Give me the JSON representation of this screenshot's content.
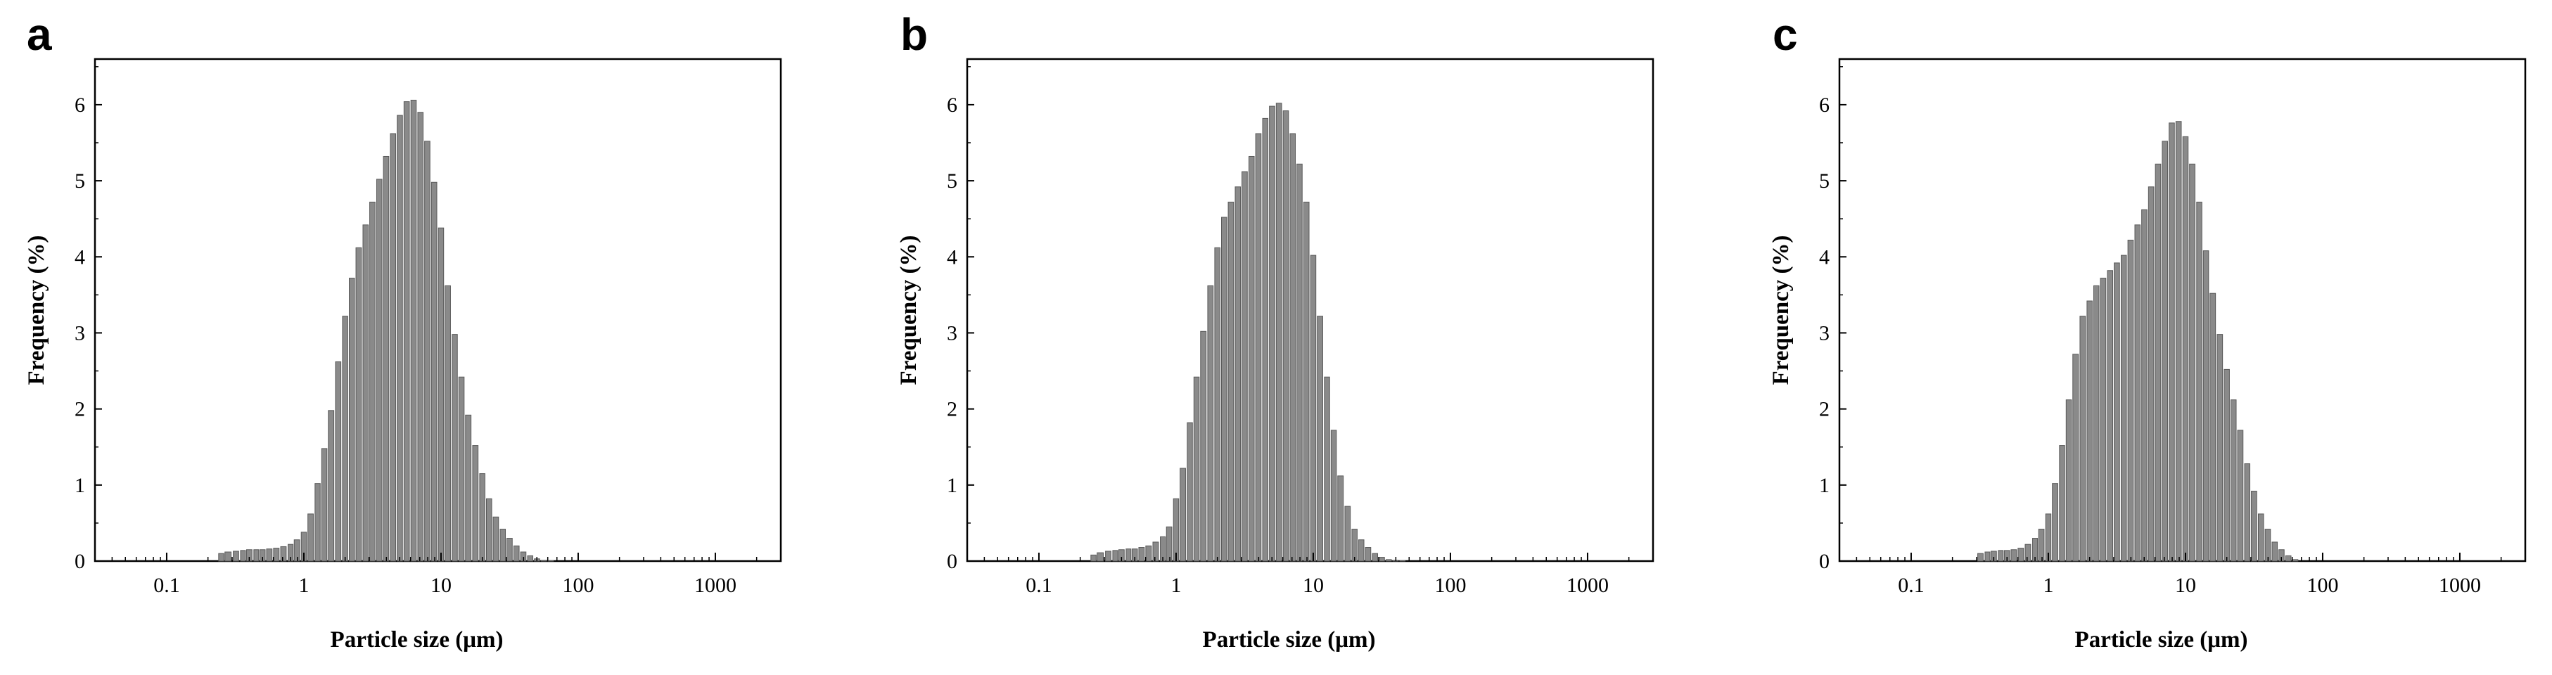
{
  "chart_data": [
    {
      "panel": "a",
      "type": "bar",
      "xlabel": "Particle size (μm)",
      "ylabel": "Frequency (%)",
      "xscale": "log",
      "xlim": [
        0.03,
        3000
      ],
      "ylim": [
        0,
        6.6
      ],
      "xticks": [
        "0.1",
        "1",
        "10",
        "100",
        "1000"
      ],
      "yticks": [
        "0",
        "1",
        "2",
        "3",
        "4",
        "5",
        "6"
      ],
      "bar_color": "#8a8a8a",
      "x": [
        0.25,
        0.28,
        0.32,
        0.36,
        0.4,
        0.45,
        0.5,
        0.56,
        0.63,
        0.71,
        0.8,
        0.89,
        1.0,
        1.12,
        1.26,
        1.41,
        1.58,
        1.78,
        2.0,
        2.24,
        2.51,
        2.82,
        3.16,
        3.55,
        3.98,
        4.47,
        5.01,
        5.62,
        6.31,
        7.08,
        7.94,
        8.91,
        10.0,
        11.2,
        12.6,
        14.1,
        15.8,
        17.8,
        20.0,
        22.4,
        25.1,
        28.2,
        31.6,
        35.5,
        39.8,
        44.7,
        50.1,
        56.2,
        63.1,
        70.8
      ],
      "values": [
        0.1,
        0.12,
        0.13,
        0.14,
        0.15,
        0.15,
        0.15,
        0.16,
        0.17,
        0.19,
        0.22,
        0.28,
        0.38,
        0.62,
        1.02,
        1.48,
        1.98,
        2.62,
        3.22,
        3.72,
        4.12,
        4.42,
        4.72,
        5.02,
        5.32,
        5.62,
        5.86,
        6.04,
        6.06,
        5.9,
        5.52,
        4.98,
        4.38,
        3.62,
        2.98,
        2.42,
        1.92,
        1.52,
        1.15,
        0.82,
        0.58,
        0.42,
        0.3,
        0.2,
        0.12,
        0.07,
        0.03,
        0.01,
        0.005,
        0.0
      ]
    },
    {
      "panel": "b",
      "type": "bar",
      "xlabel": "Particle size (μm)",
      "ylabel": "Frequency (%)",
      "xscale": "log",
      "xlim": [
        0.03,
        3000
      ],
      "ylim": [
        0,
        6.6
      ],
      "xticks": [
        "0.1",
        "1",
        "10",
        "100",
        "1000"
      ],
      "yticks": [
        "0",
        "1",
        "2",
        "3",
        "4",
        "5",
        "6"
      ],
      "bar_color": "#8a8a8a",
      "x": [
        0.25,
        0.28,
        0.32,
        0.36,
        0.4,
        0.45,
        0.5,
        0.56,
        0.63,
        0.71,
        0.8,
        0.89,
        1.0,
        1.12,
        1.26,
        1.41,
        1.58,
        1.78,
        2.0,
        2.24,
        2.51,
        2.82,
        3.16,
        3.55,
        3.98,
        4.47,
        5.01,
        5.62,
        6.31,
        7.08,
        7.94,
        8.91,
        10.0,
        11.2,
        12.6,
        14.1,
        15.8,
        17.8,
        20.0,
        22.4,
        25.1,
        28.2,
        31.6,
        35.5,
        39.8,
        44.7,
        50.1,
        56.2
      ],
      "values": [
        0.08,
        0.11,
        0.13,
        0.14,
        0.15,
        0.16,
        0.16,
        0.18,
        0.2,
        0.25,
        0.32,
        0.45,
        0.82,
        1.22,
        1.82,
        2.42,
        3.02,
        3.62,
        4.12,
        4.52,
        4.72,
        4.92,
        5.12,
        5.32,
        5.62,
        5.82,
        5.98,
        6.02,
        5.92,
        5.62,
        5.22,
        4.72,
        4.02,
        3.22,
        2.42,
        1.72,
        1.12,
        0.72,
        0.42,
        0.28,
        0.18,
        0.1,
        0.05,
        0.02,
        0.01,
        0.005,
        0.0,
        0.0
      ]
    },
    {
      "panel": "c",
      "type": "bar",
      "xlabel": "Particle size (μm)",
      "ylabel": "Frequency (%)",
      "xscale": "log",
      "xlim": [
        0.03,
        3000
      ],
      "ylim": [
        0,
        6.6
      ],
      "xticks": [
        "0.1",
        "1",
        "10",
        "100",
        "1000"
      ],
      "yticks": [
        "0",
        "1",
        "2",
        "3",
        "4",
        "5",
        "6"
      ],
      "bar_color": "#8a8a8a",
      "x": [
        0.32,
        0.36,
        0.4,
        0.45,
        0.5,
        0.56,
        0.63,
        0.71,
        0.8,
        0.89,
        1.0,
        1.12,
        1.26,
        1.41,
        1.58,
        1.78,
        2.0,
        2.24,
        2.51,
        2.82,
        3.16,
        3.55,
        3.98,
        4.47,
        5.01,
        5.62,
        6.31,
        7.08,
        7.94,
        8.91,
        10.0,
        11.2,
        12.6,
        14.1,
        15.8,
        17.8,
        20.0,
        22.4,
        25.1,
        28.2,
        31.6,
        35.5,
        39.8,
        44.7,
        50.1,
        56.2,
        63.1,
        70.8
      ],
      "values": [
        0.1,
        0.12,
        0.13,
        0.14,
        0.14,
        0.15,
        0.17,
        0.22,
        0.3,
        0.42,
        0.62,
        1.02,
        1.52,
        2.12,
        2.72,
        3.22,
        3.42,
        3.62,
        3.72,
        3.82,
        3.92,
        4.02,
        4.22,
        4.42,
        4.62,
        4.92,
        5.22,
        5.52,
        5.76,
        5.78,
        5.58,
        5.22,
        4.72,
        4.08,
        3.52,
        2.98,
        2.52,
        2.12,
        1.72,
        1.28,
        0.92,
        0.62,
        0.42,
        0.25,
        0.15,
        0.07,
        0.02,
        0.0
      ]
    }
  ]
}
